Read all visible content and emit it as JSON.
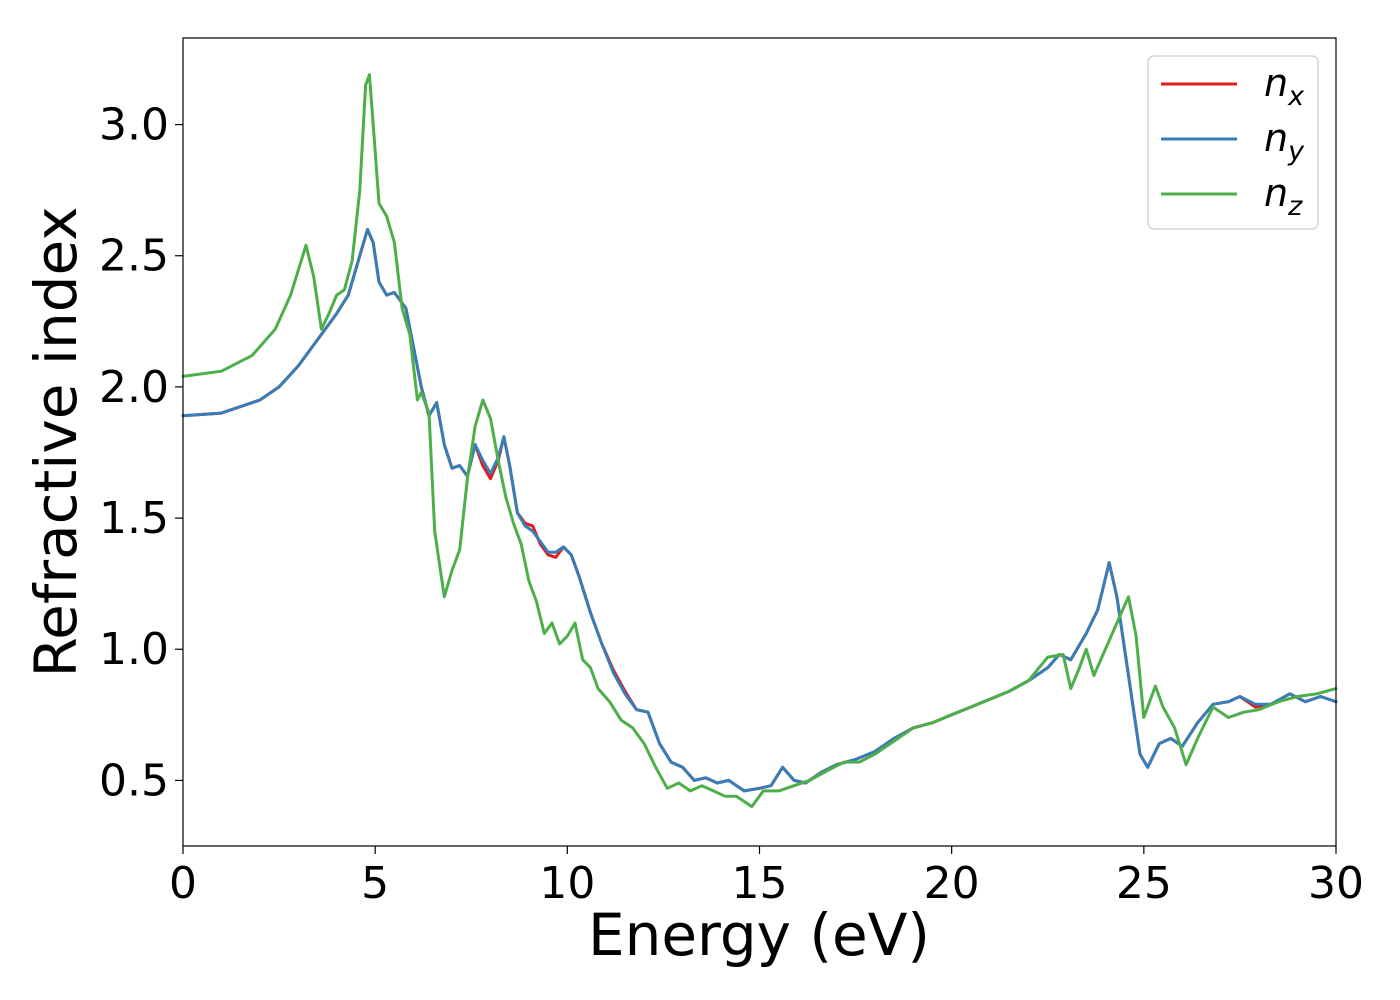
{
  "chart_data": {
    "type": "line",
    "title": "",
    "xlabel": "Energy (eV)",
    "ylabel": "Refractive index",
    "xlim": [
      0,
      30
    ],
    "ylim": [
      0.25,
      3.33
    ],
    "xticks": [
      0,
      5,
      10,
      15,
      20,
      25,
      30
    ],
    "yticks": [
      0.5,
      1.0,
      1.5,
      2.0,
      2.5,
      3.0
    ],
    "xtick_labels": [
      "0",
      "5",
      "10",
      "15",
      "20",
      "25",
      "30"
    ],
    "ytick_labels": [
      "0.5",
      "1.0",
      "1.5",
      "2.0",
      "2.5",
      "3.0"
    ],
    "grid": false,
    "legend_position": "top-right",
    "series": [
      {
        "name": "n_x",
        "label_base": "n",
        "label_sub": "x",
        "color": "#e41a1c",
        "points": [
          [
            0,
            1.89
          ],
          [
            1,
            1.9
          ],
          [
            2,
            1.95
          ],
          [
            2.5,
            2.0
          ],
          [
            3,
            2.08
          ],
          [
            3.5,
            2.18
          ],
          [
            4,
            2.28
          ],
          [
            4.3,
            2.35
          ],
          [
            4.6,
            2.5
          ],
          [
            4.8,
            2.6
          ],
          [
            4.95,
            2.55
          ],
          [
            5.1,
            2.4
          ],
          [
            5.3,
            2.35
          ],
          [
            5.5,
            2.36
          ],
          [
            5.8,
            2.3
          ],
          [
            6.0,
            2.15
          ],
          [
            6.2,
            2.0
          ],
          [
            6.4,
            1.89
          ],
          [
            6.6,
            1.94
          ],
          [
            6.8,
            1.78
          ],
          [
            7.0,
            1.69
          ],
          [
            7.2,
            1.7
          ],
          [
            7.4,
            1.66
          ],
          [
            7.6,
            1.78
          ],
          [
            7.8,
            1.7
          ],
          [
            8.0,
            1.65
          ],
          [
            8.2,
            1.72
          ],
          [
            8.35,
            1.81
          ],
          [
            8.5,
            1.7
          ],
          [
            8.7,
            1.52
          ],
          [
            8.9,
            1.48
          ],
          [
            9.1,
            1.47
          ],
          [
            9.3,
            1.4
          ],
          [
            9.5,
            1.36
          ],
          [
            9.7,
            1.35
          ],
          [
            9.9,
            1.39
          ],
          [
            10.1,
            1.36
          ],
          [
            10.3,
            1.28
          ],
          [
            10.6,
            1.14
          ],
          [
            10.9,
            1.02
          ],
          [
            11.2,
            0.92
          ],
          [
            11.5,
            0.84
          ],
          [
            11.8,
            0.77
          ],
          [
            12.1,
            0.76
          ],
          [
            12.4,
            0.64
          ],
          [
            12.7,
            0.57
          ],
          [
            13.0,
            0.55
          ],
          [
            13.3,
            0.5
          ],
          [
            13.6,
            0.51
          ],
          [
            13.9,
            0.49
          ],
          [
            14.2,
            0.5
          ],
          [
            14.6,
            0.46
          ],
          [
            15.0,
            0.47
          ],
          [
            15.3,
            0.48
          ],
          [
            15.6,
            0.55
          ],
          [
            15.9,
            0.5
          ],
          [
            16.2,
            0.49
          ],
          [
            16.6,
            0.53
          ],
          [
            17.0,
            0.56
          ],
          [
            17.5,
            0.58
          ],
          [
            18.0,
            0.61
          ],
          [
            18.5,
            0.66
          ],
          [
            19.0,
            0.7
          ],
          [
            19.5,
            0.72
          ],
          [
            20.0,
            0.75
          ],
          [
            20.5,
            0.78
          ],
          [
            21.0,
            0.81
          ],
          [
            21.5,
            0.84
          ],
          [
            22.0,
            0.88
          ],
          [
            22.5,
            0.93
          ],
          [
            22.8,
            0.98
          ],
          [
            23.1,
            0.96
          ],
          [
            23.5,
            1.06
          ],
          [
            23.8,
            1.15
          ],
          [
            24.1,
            1.33
          ],
          [
            24.3,
            1.2
          ],
          [
            24.6,
            0.9
          ],
          [
            24.9,
            0.6
          ],
          [
            25.1,
            0.55
          ],
          [
            25.4,
            0.64
          ],
          [
            25.7,
            0.66
          ],
          [
            26.0,
            0.63
          ],
          [
            26.4,
            0.72
          ],
          [
            26.8,
            0.79
          ],
          [
            27.2,
            0.8
          ],
          [
            27.5,
            0.82
          ],
          [
            27.9,
            0.78
          ],
          [
            28.3,
            0.79
          ],
          [
            28.8,
            0.83
          ],
          [
            29.2,
            0.8
          ],
          [
            29.6,
            0.82
          ],
          [
            30,
            0.8
          ]
        ]
      },
      {
        "name": "n_y",
        "label_base": "n",
        "label_sub": "y",
        "color": "#377eb8",
        "points": [
          [
            0,
            1.89
          ],
          [
            1,
            1.9
          ],
          [
            2,
            1.95
          ],
          [
            2.5,
            2.0
          ],
          [
            3,
            2.08
          ],
          [
            3.5,
            2.18
          ],
          [
            4,
            2.28
          ],
          [
            4.3,
            2.35
          ],
          [
            4.6,
            2.5
          ],
          [
            4.8,
            2.6
          ],
          [
            4.95,
            2.55
          ],
          [
            5.1,
            2.4
          ],
          [
            5.3,
            2.35
          ],
          [
            5.5,
            2.36
          ],
          [
            5.8,
            2.3
          ],
          [
            6.0,
            2.15
          ],
          [
            6.2,
            2.0
          ],
          [
            6.4,
            1.89
          ],
          [
            6.6,
            1.94
          ],
          [
            6.8,
            1.78
          ],
          [
            7.0,
            1.69
          ],
          [
            7.2,
            1.7
          ],
          [
            7.4,
            1.66
          ],
          [
            7.6,
            1.78
          ],
          [
            7.8,
            1.72
          ],
          [
            8.0,
            1.67
          ],
          [
            8.2,
            1.73
          ],
          [
            8.35,
            1.81
          ],
          [
            8.5,
            1.7
          ],
          [
            8.7,
            1.52
          ],
          [
            8.9,
            1.47
          ],
          [
            9.1,
            1.45
          ],
          [
            9.3,
            1.41
          ],
          [
            9.5,
            1.37
          ],
          [
            9.7,
            1.37
          ],
          [
            9.9,
            1.39
          ],
          [
            10.1,
            1.36
          ],
          [
            10.3,
            1.28
          ],
          [
            10.6,
            1.14
          ],
          [
            10.9,
            1.02
          ],
          [
            11.2,
            0.91
          ],
          [
            11.5,
            0.83
          ],
          [
            11.8,
            0.77
          ],
          [
            12.1,
            0.76
          ],
          [
            12.4,
            0.64
          ],
          [
            12.7,
            0.57
          ],
          [
            13.0,
            0.55
          ],
          [
            13.3,
            0.5
          ],
          [
            13.6,
            0.51
          ],
          [
            13.9,
            0.49
          ],
          [
            14.2,
            0.5
          ],
          [
            14.6,
            0.46
          ],
          [
            15.0,
            0.47
          ],
          [
            15.3,
            0.48
          ],
          [
            15.6,
            0.55
          ],
          [
            15.9,
            0.5
          ],
          [
            16.2,
            0.49
          ],
          [
            16.6,
            0.53
          ],
          [
            17.0,
            0.56
          ],
          [
            17.5,
            0.58
          ],
          [
            18.0,
            0.61
          ],
          [
            18.5,
            0.66
          ],
          [
            19.0,
            0.7
          ],
          [
            19.5,
            0.72
          ],
          [
            20.0,
            0.75
          ],
          [
            20.5,
            0.78
          ],
          [
            21.0,
            0.81
          ],
          [
            21.5,
            0.84
          ],
          [
            22.0,
            0.88
          ],
          [
            22.5,
            0.93
          ],
          [
            22.8,
            0.98
          ],
          [
            23.1,
            0.96
          ],
          [
            23.5,
            1.06
          ],
          [
            23.8,
            1.15
          ],
          [
            24.1,
            1.33
          ],
          [
            24.3,
            1.2
          ],
          [
            24.6,
            0.9
          ],
          [
            24.9,
            0.6
          ],
          [
            25.1,
            0.55
          ],
          [
            25.4,
            0.64
          ],
          [
            25.7,
            0.66
          ],
          [
            26.0,
            0.63
          ],
          [
            26.4,
            0.72
          ],
          [
            26.8,
            0.79
          ],
          [
            27.2,
            0.8
          ],
          [
            27.5,
            0.82
          ],
          [
            27.9,
            0.79
          ],
          [
            28.3,
            0.79
          ],
          [
            28.8,
            0.83
          ],
          [
            29.2,
            0.8
          ],
          [
            29.6,
            0.82
          ],
          [
            30,
            0.8
          ]
        ]
      },
      {
        "name": "n_z",
        "label_base": "n",
        "label_sub": "z",
        "color": "#4daf4a",
        "points": [
          [
            0,
            2.04
          ],
          [
            1,
            2.06
          ],
          [
            1.8,
            2.12
          ],
          [
            2.4,
            2.22
          ],
          [
            2.8,
            2.35
          ],
          [
            3.2,
            2.54
          ],
          [
            3.4,
            2.42
          ],
          [
            3.6,
            2.22
          ],
          [
            3.8,
            2.28
          ],
          [
            4.0,
            2.35
          ],
          [
            4.2,
            2.37
          ],
          [
            4.4,
            2.48
          ],
          [
            4.6,
            2.75
          ],
          [
            4.75,
            3.15
          ],
          [
            4.85,
            3.19
          ],
          [
            4.95,
            3.0
          ],
          [
            5.1,
            2.7
          ],
          [
            5.3,
            2.65
          ],
          [
            5.5,
            2.55
          ],
          [
            5.7,
            2.3
          ],
          [
            5.9,
            2.2
          ],
          [
            6.1,
            1.95
          ],
          [
            6.2,
            1.98
          ],
          [
            6.4,
            1.9
          ],
          [
            6.55,
            1.45
          ],
          [
            6.8,
            1.2
          ],
          [
            7.0,
            1.3
          ],
          [
            7.2,
            1.38
          ],
          [
            7.4,
            1.65
          ],
          [
            7.6,
            1.85
          ],
          [
            7.8,
            1.95
          ],
          [
            8.0,
            1.88
          ],
          [
            8.2,
            1.72
          ],
          [
            8.4,
            1.58
          ],
          [
            8.6,
            1.48
          ],
          [
            8.8,
            1.4
          ],
          [
            9.0,
            1.26
          ],
          [
            9.2,
            1.18
          ],
          [
            9.4,
            1.06
          ],
          [
            9.6,
            1.1
          ],
          [
            9.8,
            1.02
          ],
          [
            10.0,
            1.05
          ],
          [
            10.2,
            1.1
          ],
          [
            10.4,
            0.96
          ],
          [
            10.6,
            0.93
          ],
          [
            10.8,
            0.85
          ],
          [
            11.1,
            0.8
          ],
          [
            11.4,
            0.73
          ],
          [
            11.7,
            0.7
          ],
          [
            12.0,
            0.64
          ],
          [
            12.3,
            0.55
          ],
          [
            12.6,
            0.47
          ],
          [
            12.9,
            0.49
          ],
          [
            13.2,
            0.46
          ],
          [
            13.5,
            0.48
          ],
          [
            13.8,
            0.46
          ],
          [
            14.1,
            0.44
          ],
          [
            14.4,
            0.44
          ],
          [
            14.8,
            0.4
          ],
          [
            15.1,
            0.46
          ],
          [
            15.5,
            0.46
          ],
          [
            15.9,
            0.48
          ],
          [
            16.3,
            0.5
          ],
          [
            16.8,
            0.54
          ],
          [
            17.2,
            0.57
          ],
          [
            17.6,
            0.57
          ],
          [
            18.0,
            0.6
          ],
          [
            18.5,
            0.65
          ],
          [
            19.0,
            0.7
          ],
          [
            19.5,
            0.72
          ],
          [
            20.0,
            0.75
          ],
          [
            20.5,
            0.78
          ],
          [
            21.0,
            0.81
          ],
          [
            21.5,
            0.84
          ],
          [
            22.0,
            0.88
          ],
          [
            22.5,
            0.97
          ],
          [
            22.9,
            0.98
          ],
          [
            23.1,
            0.85
          ],
          [
            23.3,
            0.92
          ],
          [
            23.5,
            1.0
          ],
          [
            23.7,
            0.9
          ],
          [
            24.0,
            1.0
          ],
          [
            24.3,
            1.1
          ],
          [
            24.6,
            1.2
          ],
          [
            24.8,
            1.05
          ],
          [
            25.0,
            0.74
          ],
          [
            25.3,
            0.86
          ],
          [
            25.5,
            0.78
          ],
          [
            25.8,
            0.7
          ],
          [
            26.1,
            0.56
          ],
          [
            26.4,
            0.66
          ],
          [
            26.8,
            0.78
          ],
          [
            27.2,
            0.74
          ],
          [
            27.6,
            0.76
          ],
          [
            28.0,
            0.77
          ],
          [
            28.5,
            0.8
          ],
          [
            29.0,
            0.82
          ],
          [
            29.5,
            0.83
          ],
          [
            30,
            0.85
          ]
        ]
      }
    ]
  }
}
